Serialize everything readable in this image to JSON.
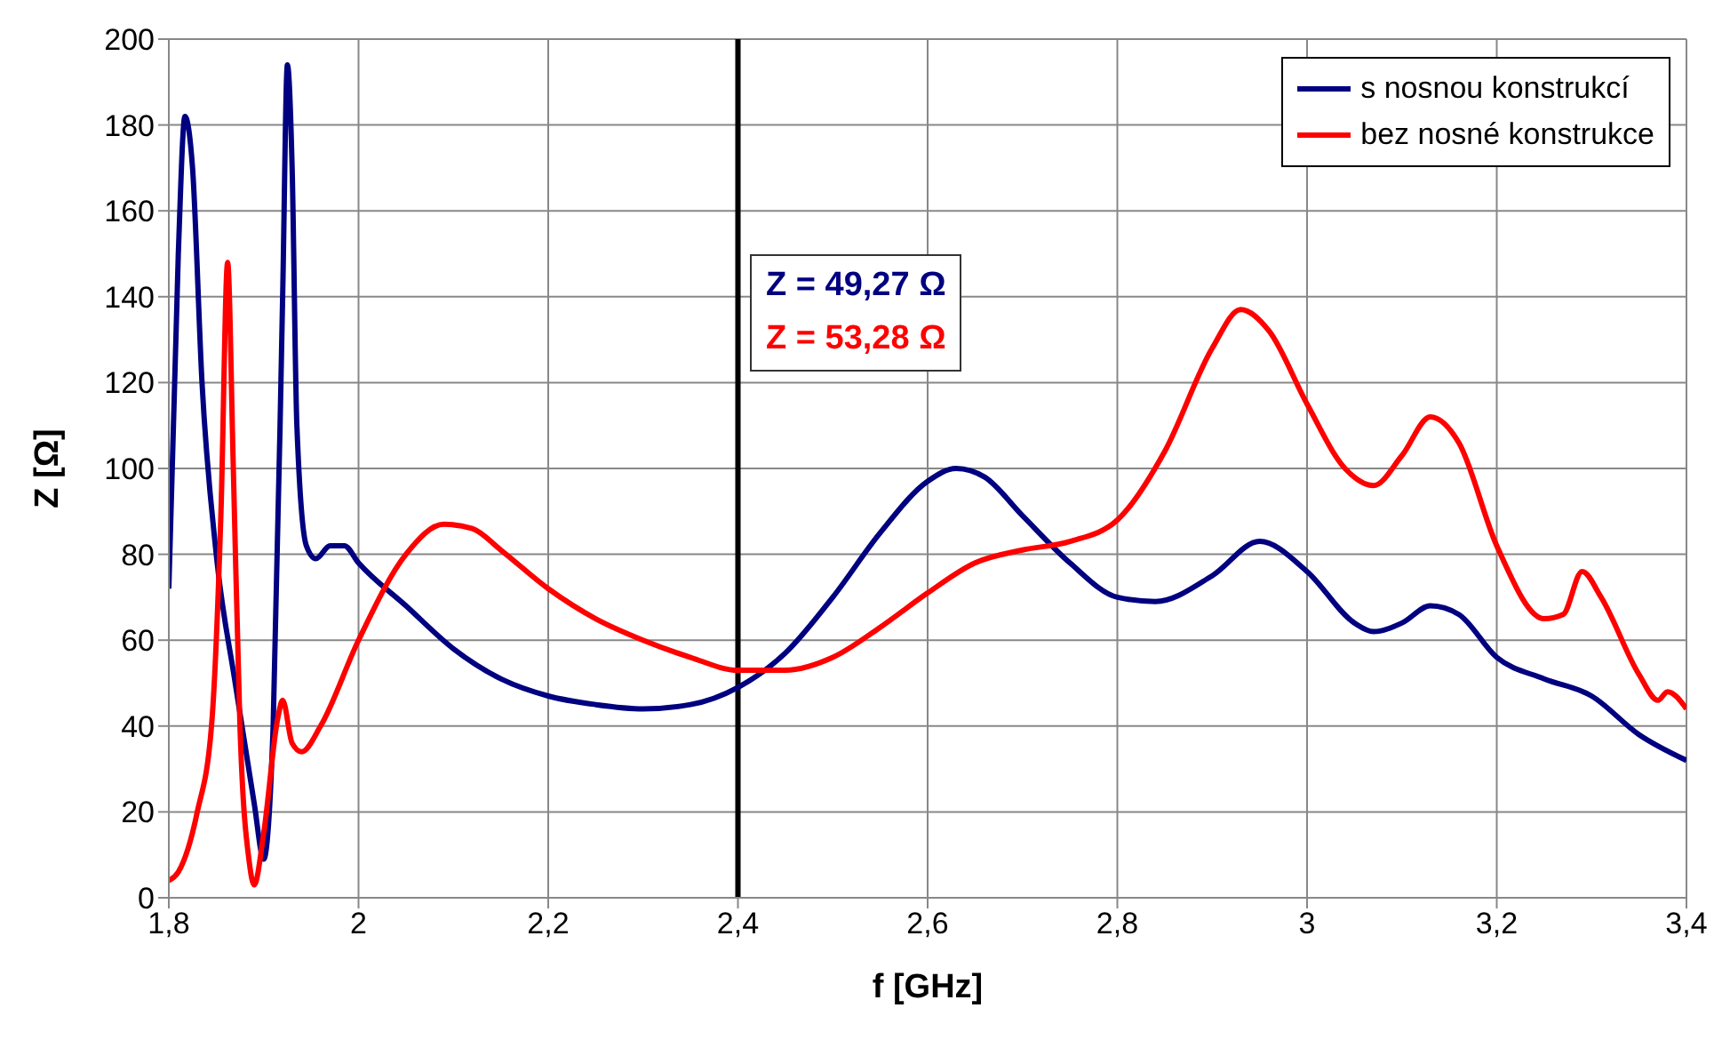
{
  "chart_data": {
    "type": "line",
    "xlabel": "f [GHz]",
    "ylabel": "Z [Ω]",
    "xlim": [
      1.8,
      3.4
    ],
    "xticks": [
      {
        "value": 1.8,
        "label": "1,8"
      },
      {
        "value": 2,
        "label": "2"
      },
      {
        "value": 2.2,
        "label": "2,2"
      },
      {
        "value": 2.4,
        "label": "2,4"
      },
      {
        "value": 2.6,
        "label": "2,6"
      },
      {
        "value": 2.8,
        "label": "2,8"
      },
      {
        "value": 3,
        "label": "3"
      },
      {
        "value": 3.2,
        "label": "3,2"
      },
      {
        "value": 3.4,
        "label": "3,4"
      }
    ],
    "ylim": [
      0,
      200
    ],
    "yticks": [
      0,
      20,
      40,
      60,
      80,
      100,
      120,
      140,
      160,
      180,
      200
    ],
    "grid": true,
    "legend": "top right",
    "marker": "none",
    "line_style": "solid",
    "series": [
      {
        "name": "s nosnou konstrukcí",
        "color": "#000080",
        "x": [
          1.8,
          1.81,
          1.817,
          1.825,
          1.835,
          1.85,
          1.87,
          1.89,
          1.9,
          1.91,
          1.92,
          1.925,
          1.93,
          1.935,
          1.945,
          1.955,
          1.97,
          1.985,
          2.0,
          2.05,
          2.1,
          2.15,
          2.2,
          2.25,
          2.3,
          2.35,
          2.4,
          2.45,
          2.5,
          2.55,
          2.6,
          2.63,
          2.66,
          2.7,
          2.75,
          2.8,
          2.84,
          2.9,
          2.95,
          3.0,
          3.05,
          3.07,
          3.1,
          3.13,
          3.16,
          3.2,
          3.25,
          3.3,
          3.35,
          3.4
        ],
        "values": [
          72,
          150,
          182,
          170,
          120,
          80,
          50,
          22,
          9,
          40,
          140,
          194,
          170,
          110,
          82,
          79,
          82,
          82,
          78,
          68,
          58,
          51,
          47,
          45,
          44,
          45,
          49,
          57,
          70,
          85,
          97,
          100,
          98,
          89,
          78,
          70,
          69,
          75,
          83,
          76,
          64,
          62,
          64,
          68,
          66,
          56,
          51,
          47,
          38,
          32
        ]
      },
      {
        "name": "bez nosné konstrukce",
        "color": "#ff0000",
        "x": [
          1.8,
          1.81,
          1.83,
          1.845,
          1.855,
          1.862,
          1.868,
          1.875,
          1.885,
          1.89,
          1.9,
          1.915,
          1.92,
          1.93,
          1.94,
          1.96,
          2.0,
          2.05,
          2.09,
          2.12,
          2.15,
          2.2,
          2.25,
          2.3,
          2.35,
          2.4,
          2.45,
          2.5,
          2.55,
          2.6,
          2.65,
          2.7,
          2.75,
          2.8,
          2.85,
          2.9,
          2.93,
          2.96,
          3.0,
          3.04,
          3.07,
          3.1,
          3.13,
          3.16,
          3.2,
          3.25,
          3.27,
          3.29,
          3.31,
          3.35,
          3.37,
          3.38,
          3.4
        ],
        "values": [
          4,
          6,
          20,
          40,
          90,
          148,
          100,
          40,
          8,
          3,
          15,
          42,
          46,
          36,
          34,
          40,
          60,
          80,
          87,
          86,
          81,
          72,
          65,
          60,
          56,
          53,
          53,
          56,
          63,
          71,
          78,
          81,
          83,
          88,
          104,
          128,
          137,
          132,
          115,
          100,
          96,
          103,
          112,
          106,
          82,
          65,
          66,
          76,
          70,
          52,
          46,
          48,
          44
        ]
      }
    ],
    "ref_lines": [
      {
        "axis": "x",
        "value": 2.4,
        "color": "#000000"
      }
    ],
    "annotations": [
      "Z = 49,27 Ω",
      "Z = 53,28 Ω"
    ]
  }
}
